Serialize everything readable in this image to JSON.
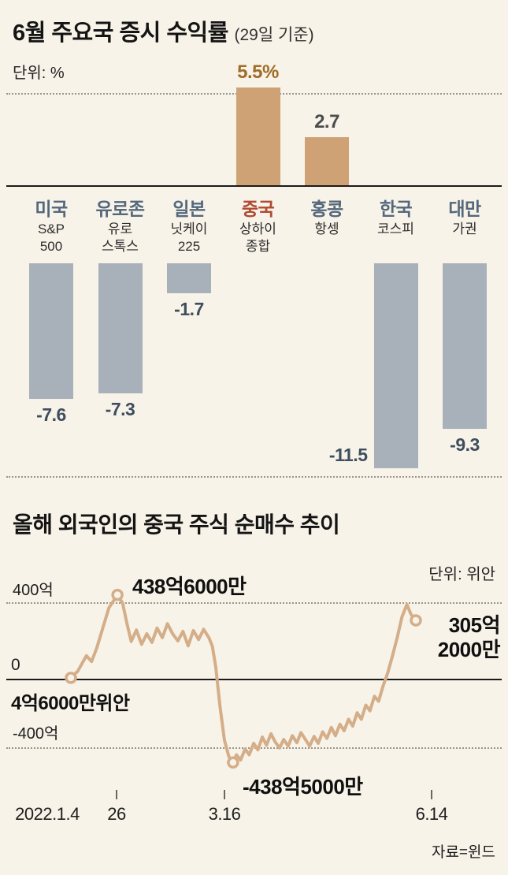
{
  "bar_section": {
    "title": "6월 주요국 증시 수익률",
    "title_suffix": "(29일 기준)",
    "unit_label": "단위: %"
  },
  "line_section": {
    "title": "올해 외국인의 중국 주식 순매수 추이",
    "unit_label": "단위: 위안",
    "source": "자료=윈드"
  },
  "chart_data": [
    {
      "type": "bar",
      "title": "6월 주요국 증시 수익률 (29일 기준)",
      "unit": "%",
      "categories": [
        "미국",
        "유로존",
        "일본",
        "중국",
        "홍콩",
        "한국",
        "대만"
      ],
      "category_ids": [
        "us",
        "eurozone",
        "japan",
        "china",
        "hong-kong",
        "korea",
        "taiwan"
      ],
      "index_labels": [
        "S&P\n500",
        "유로\n스톡스",
        "닛케이\n225",
        "상하이\n종합",
        "항셍",
        "코스피",
        "가권"
      ],
      "values": [
        -7.6,
        -7.3,
        -1.7,
        5.5,
        2.7,
        -11.5,
        -9.3
      ],
      "value_labels": [
        "-7.6",
        "-7.3",
        "-1.7",
        "5.5%",
        "2.7",
        "-11.5",
        "-9.3"
      ],
      "value_label_positions": [
        "below",
        "below",
        "below",
        "above",
        "above",
        "left",
        "below"
      ],
      "category_colors": [
        "#54687c",
        "#54687c",
        "#54687c",
        "#b04a31",
        "#54687c",
        "#54687c",
        "#54687c"
      ],
      "value_label_colors": [
        "#3e4e5e",
        "#3e4e5e",
        "#3e4e5e",
        "#a06c28",
        "#4c4c4c",
        "#3e4e5e",
        "#3e4e5e"
      ],
      "positive_bar_color": "#cfa276",
      "negative_bar_color": "#a8b1ba",
      "ylim": [
        -12,
        6
      ],
      "grid": "dotted-top-bottom"
    },
    {
      "type": "line",
      "title": "올해 외국인의 중국 주식 순매수 추이",
      "unit": "위안",
      "y_gridlines": [
        {
          "label": "400억",
          "value": 400
        },
        {
          "label": "0",
          "value": 0
        },
        {
          "label": "-400억",
          "value": -400
        }
      ],
      "x_ticks": [
        "2022.1.4",
        "26",
        "3.16",
        "6.14"
      ],
      "line_color": "#d4ae88",
      "key_points": [
        {
          "id": "start",
          "label": "4억6000만위안",
          "value_100m_yuan": 4.6,
          "t": 0
        },
        {
          "id": "peak",
          "label": "438억6000만",
          "value_100m_yuan": 438.6,
          "t": 0.135
        },
        {
          "id": "trough",
          "label": "-438억5000만",
          "value_100m_yuan": -438.5,
          "t": 0.47
        },
        {
          "id": "end",
          "label": "305억\n2000만",
          "value_100m_yuan": 305.2,
          "t": 1
        }
      ],
      "series_t_value": [
        [
          0,
          4.6
        ],
        [
          0.02,
          40
        ],
        [
          0.045,
          120
        ],
        [
          0.06,
          90
        ],
        [
          0.075,
          160
        ],
        [
          0.09,
          250
        ],
        [
          0.11,
          370
        ],
        [
          0.135,
          438.6
        ],
        [
          0.15,
          395
        ],
        [
          0.163,
          285
        ],
        [
          0.175,
          195
        ],
        [
          0.19,
          255
        ],
        [
          0.205,
          180
        ],
        [
          0.22,
          235
        ],
        [
          0.235,
          190
        ],
        [
          0.25,
          265
        ],
        [
          0.265,
          215
        ],
        [
          0.28,
          288
        ],
        [
          0.295,
          235
        ],
        [
          0.31,
          198
        ],
        [
          0.325,
          248
        ],
        [
          0.34,
          172
        ],
        [
          0.355,
          252
        ],
        [
          0.37,
          205
        ],
        [
          0.385,
          258
        ],
        [
          0.4,
          215
        ],
        [
          0.41,
          170
        ],
        [
          0.42,
          60
        ],
        [
          0.432,
          -140
        ],
        [
          0.445,
          -320
        ],
        [
          0.458,
          -408
        ],
        [
          0.47,
          -438.5
        ],
        [
          0.48,
          -398
        ],
        [
          0.492,
          -425
        ],
        [
          0.505,
          -368
        ],
        [
          0.517,
          -398
        ],
        [
          0.53,
          -338
        ],
        [
          0.542,
          -372
        ],
        [
          0.555,
          -305
        ],
        [
          0.567,
          -348
        ],
        [
          0.58,
          -288
        ],
        [
          0.592,
          -330
        ],
        [
          0.605,
          -362
        ],
        [
          0.617,
          -318
        ],
        [
          0.63,
          -352
        ],
        [
          0.642,
          -298
        ],
        [
          0.655,
          -335
        ],
        [
          0.667,
          -282
        ],
        [
          0.68,
          -318
        ],
        [
          0.692,
          -352
        ],
        [
          0.705,
          -302
        ],
        [
          0.717,
          -338
        ],
        [
          0.73,
          -278
        ],
        [
          0.742,
          -312
        ],
        [
          0.755,
          -255
        ],
        [
          0.767,
          -298
        ],
        [
          0.78,
          -238
        ],
        [
          0.792,
          -272
        ],
        [
          0.805,
          -212
        ],
        [
          0.817,
          -248
        ],
        [
          0.83,
          -178
        ],
        [
          0.842,
          -212
        ],
        [
          0.855,
          -138
        ],
        [
          0.867,
          -168
        ],
        [
          0.88,
          -92
        ],
        [
          0.892,
          -118
        ],
        [
          0.905,
          -38
        ],
        [
          0.918,
          28
        ],
        [
          0.932,
          118
        ],
        [
          0.946,
          215
        ],
        [
          0.96,
          325
        ],
        [
          0.974,
          388
        ],
        [
          0.986,
          336
        ],
        [
          1,
          305.2
        ]
      ]
    }
  ]
}
